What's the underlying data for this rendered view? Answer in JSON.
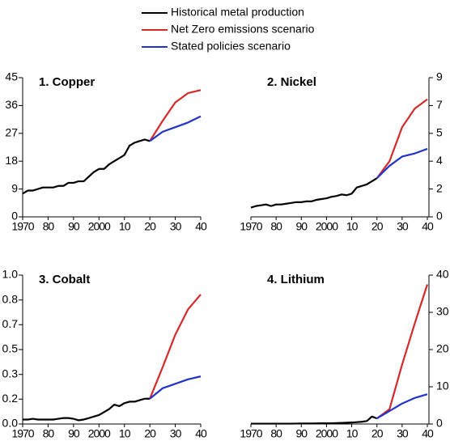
{
  "chart_data": [
    {
      "type": "line",
      "title": "1. Copper",
      "y_side": "left",
      "xlim": [
        1970,
        2040
      ],
      "xticks": [
        1970,
        {
          "value": 1980,
          "label": "80"
        },
        {
          "value": 1990,
          "label": "90"
        },
        2000,
        {
          "value": 2010,
          "label": "10"
        },
        {
          "value": 2020,
          "label": "20"
        },
        {
          "value": 2030,
          "label": "30"
        },
        {
          "value": 2040,
          "label": "40"
        }
      ],
      "ylim": [
        0,
        45
      ],
      "yticks": [
        0,
        9,
        18,
        27,
        36,
        45
      ],
      "series": [
        {
          "name": "Historical metal production",
          "color": "#000000",
          "x": [
            1970,
            1972,
            1974,
            1976,
            1978,
            1980,
            1982,
            1984,
            1986,
            1988,
            1990,
            1992,
            1994,
            1996,
            1998,
            2000,
            2002,
            2004,
            2006,
            2008,
            2010,
            2012,
            2014,
            2016,
            2018,
            2020
          ],
          "values": [
            7.5,
            8.5,
            8.5,
            9,
            9.5,
            9.5,
            9.5,
            10,
            10,
            11,
            11,
            11.5,
            11.5,
            13,
            14.5,
            15.5,
            15.5,
            17,
            18,
            19,
            20,
            23,
            24,
            24.5,
            25,
            24.5
          ]
        },
        {
          "name": "Net Zero emissions scenario",
          "color": "#d62a2a",
          "x": [
            2020,
            2025,
            2030,
            2035,
            2040
          ],
          "values": [
            24.5,
            31,
            37,
            40,
            41
          ]
        },
        {
          "name": "Stated policies scenario",
          "color": "#2233cc",
          "x": [
            2020,
            2025,
            2030,
            2035,
            2040
          ],
          "values": [
            24.5,
            27.5,
            29,
            30.5,
            32.5
          ]
        }
      ]
    },
    {
      "type": "line",
      "title": "2. Nickel",
      "y_side": "right",
      "xlim": [
        1970,
        2040
      ],
      "xticks": [
        1970,
        {
          "value": 1980,
          "label": "80"
        },
        {
          "value": 1990,
          "label": "90"
        },
        2000,
        {
          "value": 2010,
          "label": "10"
        },
        {
          "value": 2020,
          "label": "20"
        },
        {
          "value": 2030,
          "label": "30"
        },
        {
          "value": 2040,
          "label": "40"
        }
      ],
      "ylim": [
        0,
        9
      ],
      "yticks": [
        0,
        {
          "value": 1.8,
          "label": "2"
        },
        {
          "value": 3.6,
          "label": "4"
        },
        {
          "value": 5.4,
          "label": "5"
        },
        {
          "value": 7.2,
          "label": "7"
        },
        9
      ],
      "series": [
        {
          "color": "#000000",
          "x": [
            1970,
            1972,
            1974,
            1976,
            1978,
            1980,
            1982,
            1984,
            1986,
            1988,
            1990,
            1992,
            1994,
            1996,
            1998,
            2000,
            2002,
            2004,
            2006,
            2008,
            2010,
            2012,
            2014,
            2016,
            2018,
            2020
          ],
          "values": [
            0.6,
            0.7,
            0.75,
            0.8,
            0.7,
            0.8,
            0.8,
            0.85,
            0.9,
            0.95,
            0.95,
            1.0,
            1.0,
            1.1,
            1.15,
            1.2,
            1.3,
            1.35,
            1.45,
            1.4,
            1.5,
            1.9,
            2.0,
            2.1,
            2.3,
            2.5
          ]
        },
        {
          "color": "#d62a2a",
          "x": [
            2020,
            2025,
            2030,
            2035,
            2040
          ],
          "values": [
            2.5,
            3.6,
            5.8,
            7.0,
            7.6
          ]
        },
        {
          "color": "#2233cc",
          "x": [
            2020,
            2025,
            2030,
            2035,
            2040
          ],
          "values": [
            2.5,
            3.3,
            3.9,
            4.1,
            4.4
          ]
        }
      ]
    },
    {
      "type": "line",
      "title": "3. Cobalt",
      "y_side": "left",
      "xlim": [
        1970,
        2040
      ],
      "xticks": [
        1970,
        {
          "value": 1980,
          "label": "80"
        },
        {
          "value": 1990,
          "label": "90"
        },
        2000,
        {
          "value": 2010,
          "label": "10"
        },
        {
          "value": 2020,
          "label": "20"
        },
        {
          "value": 2030,
          "label": "30"
        },
        {
          "value": 2040,
          "label": "40"
        }
      ],
      "ylim": [
        0,
        1
      ],
      "yticks": [
        {
          "value": 0,
          "label": "0.0"
        },
        {
          "value": 0.167,
          "label": "0.2"
        },
        {
          "value": 0.333,
          "label": "0.3"
        },
        0.5,
        {
          "value": 0.667,
          "label": "0.7"
        },
        {
          "value": 0.833,
          "label": "0.8"
        },
        {
          "value": 1,
          "label": "1.0"
        }
      ],
      "series": [
        {
          "color": "#000000",
          "x": [
            1970,
            1972,
            1974,
            1976,
            1978,
            1980,
            1982,
            1984,
            1986,
            1988,
            1990,
            1992,
            1994,
            1996,
            1998,
            2000,
            2002,
            2004,
            2006,
            2008,
            2010,
            2012,
            2014,
            2016,
            2018,
            2020
          ],
          "values": [
            0.03,
            0.03,
            0.035,
            0.03,
            0.03,
            0.03,
            0.03,
            0.035,
            0.04,
            0.04,
            0.035,
            0.025,
            0.03,
            0.04,
            0.05,
            0.06,
            0.08,
            0.1,
            0.13,
            0.12,
            0.14,
            0.15,
            0.15,
            0.16,
            0.17,
            0.17
          ]
        },
        {
          "color": "#d62a2a",
          "x": [
            2020,
            2025,
            2030,
            2035,
            2040
          ],
          "values": [
            0.17,
            0.38,
            0.6,
            0.77,
            0.87
          ]
        },
        {
          "color": "#2233cc",
          "x": [
            2020,
            2025,
            2030,
            2035,
            2040
          ],
          "values": [
            0.17,
            0.24,
            0.27,
            0.3,
            0.32
          ]
        }
      ]
    },
    {
      "type": "line",
      "title": "4. Lithium",
      "y_side": "right",
      "xlim": [
        1970,
        2040
      ],
      "xticks": [
        1970,
        {
          "value": 1980,
          "label": "80"
        },
        {
          "value": 1990,
          "label": "90"
        },
        2000,
        {
          "value": 2010,
          "label": "10"
        },
        {
          "value": 2020,
          "label": "20"
        },
        {
          "value": 2030,
          "label": "30"
        },
        {
          "value": 2040,
          "label": "40"
        }
      ],
      "ylim": [
        0,
        40
      ],
      "yticks": [
        0,
        10,
        20,
        30,
        40
      ],
      "series": [
        {
          "color": "#000000",
          "x": [
            1970,
            1974,
            1978,
            1982,
            1986,
            1990,
            1994,
            1998,
            2002,
            2006,
            2010,
            2012,
            2014,
            2016,
            2018,
            2020
          ],
          "values": [
            0.1,
            0.1,
            0.1,
            0.1,
            0.1,
            0.15,
            0.15,
            0.2,
            0.2,
            0.3,
            0.4,
            0.5,
            0.6,
            0.8,
            2,
            1.5
          ]
        },
        {
          "color": "#d62a2a",
          "x": [
            2020,
            2025,
            2030,
            2035,
            2040
          ],
          "values": [
            1.5,
            4,
            16,
            27,
            37.5
          ]
        },
        {
          "color": "#2233cc",
          "x": [
            2020,
            2025,
            2030,
            2035,
            2040
          ],
          "values": [
            1.5,
            3.5,
            5.5,
            7,
            8
          ]
        }
      ]
    }
  ]
}
